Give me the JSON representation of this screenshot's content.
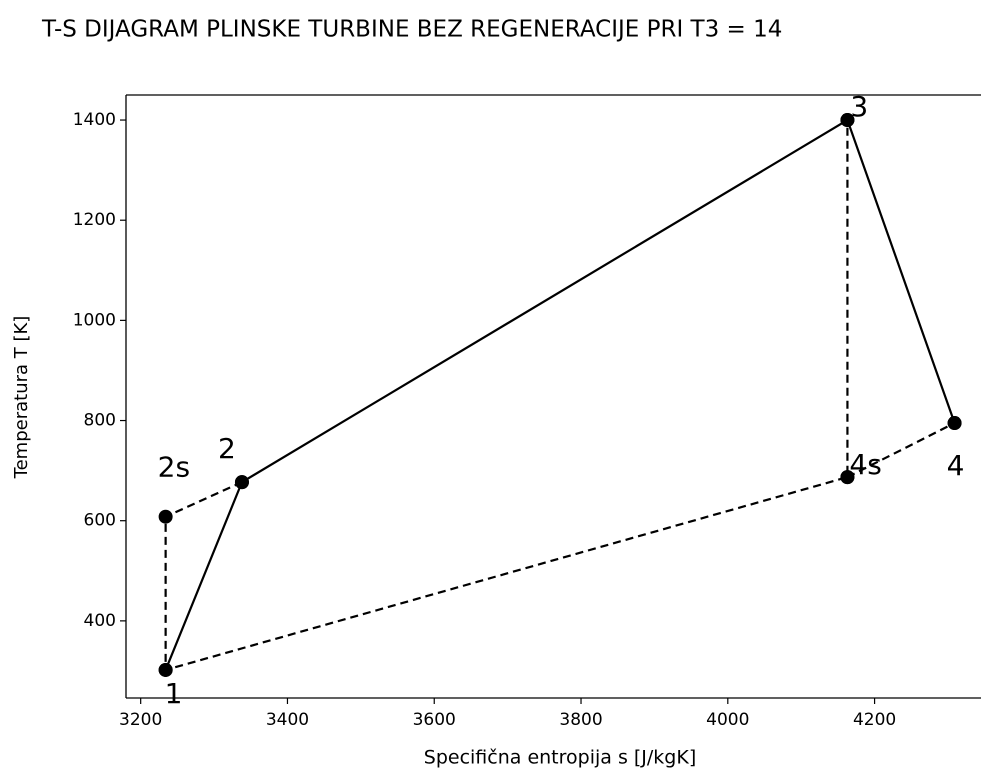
{
  "chart_data": {
    "type": "line",
    "title": "T-S DIJAGRAM PLINSKE TURBINE BEZ REGENERACIJE PRI T3 = 14",
    "x_label": "Specifična entropija s [J/kgK]",
    "y_label": "Temperatura T [K]",
    "xlim": [
      3180,
      4345
    ],
    "ylim": [
      246,
      1450
    ],
    "xticks": [
      3200,
      3400,
      3600,
      3800,
      4000,
      4200
    ],
    "yticks": [
      400,
      600,
      800,
      1000,
      1200,
      1400
    ],
    "grid": false,
    "series": [
      {
        "style": "solid",
        "color": "#000000",
        "x": [
          3234,
          3338,
          4163,
          4309
        ],
        "values": [
          302,
          677,
          1400,
          795
        ],
        "point_labels": [
          "1",
          "2",
          "3",
          "4"
        ]
      },
      {
        "style": "dashed",
        "color": "#000000",
        "x": [
          3338,
          3234,
          3234,
          4163,
          4163,
          null,
          4163,
          4309
        ],
        "values": [
          677,
          608,
          302,
          687,
          1400,
          null,
          687,
          795
        ],
        "point_labels": [
          null,
          "2s",
          null,
          "4s",
          null,
          null,
          null,
          null
        ]
      }
    ]
  }
}
